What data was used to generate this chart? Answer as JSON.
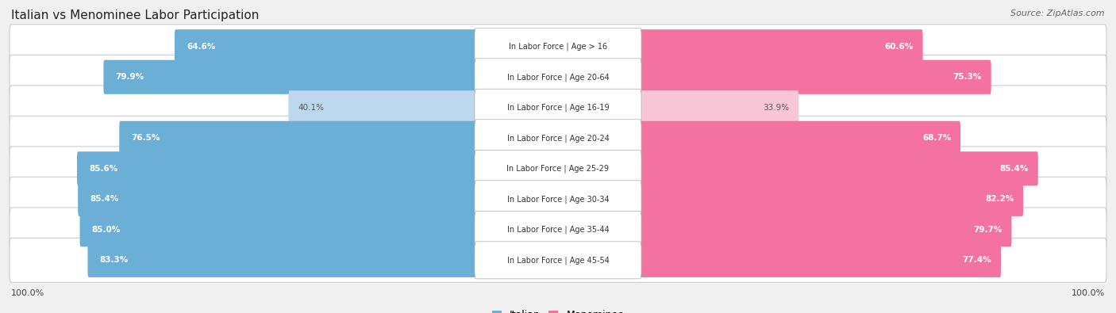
{
  "title": "Italian vs Menominee Labor Participation",
  "source": "Source: ZipAtlas.com",
  "categories": [
    "In Labor Force | Age > 16",
    "In Labor Force | Age 20-64",
    "In Labor Force | Age 16-19",
    "In Labor Force | Age 20-24",
    "In Labor Force | Age 25-29",
    "In Labor Force | Age 30-34",
    "In Labor Force | Age 35-44",
    "In Labor Force | Age 45-54"
  ],
  "italian_values": [
    64.6,
    79.9,
    40.1,
    76.5,
    85.6,
    85.4,
    85.0,
    83.3
  ],
  "menominee_values": [
    60.6,
    75.3,
    33.9,
    68.7,
    85.4,
    82.2,
    79.7,
    77.4
  ],
  "italian_color": "#6BAED6",
  "italian_light_color": "#BDD7EE",
  "menominee_color": "#F472A0",
  "menominee_light_color": "#F9C6D8",
  "row_bg_color": "#FFFFFF",
  "row_border_color": "#CCCCCC",
  "bg_color": "#F0F0F0",
  "label_bg_color": "#FFFFFF",
  "max_value": 100.0,
  "legend_labels": [
    "Italian",
    "Menominee"
  ],
  "footer_label": "100.0%"
}
